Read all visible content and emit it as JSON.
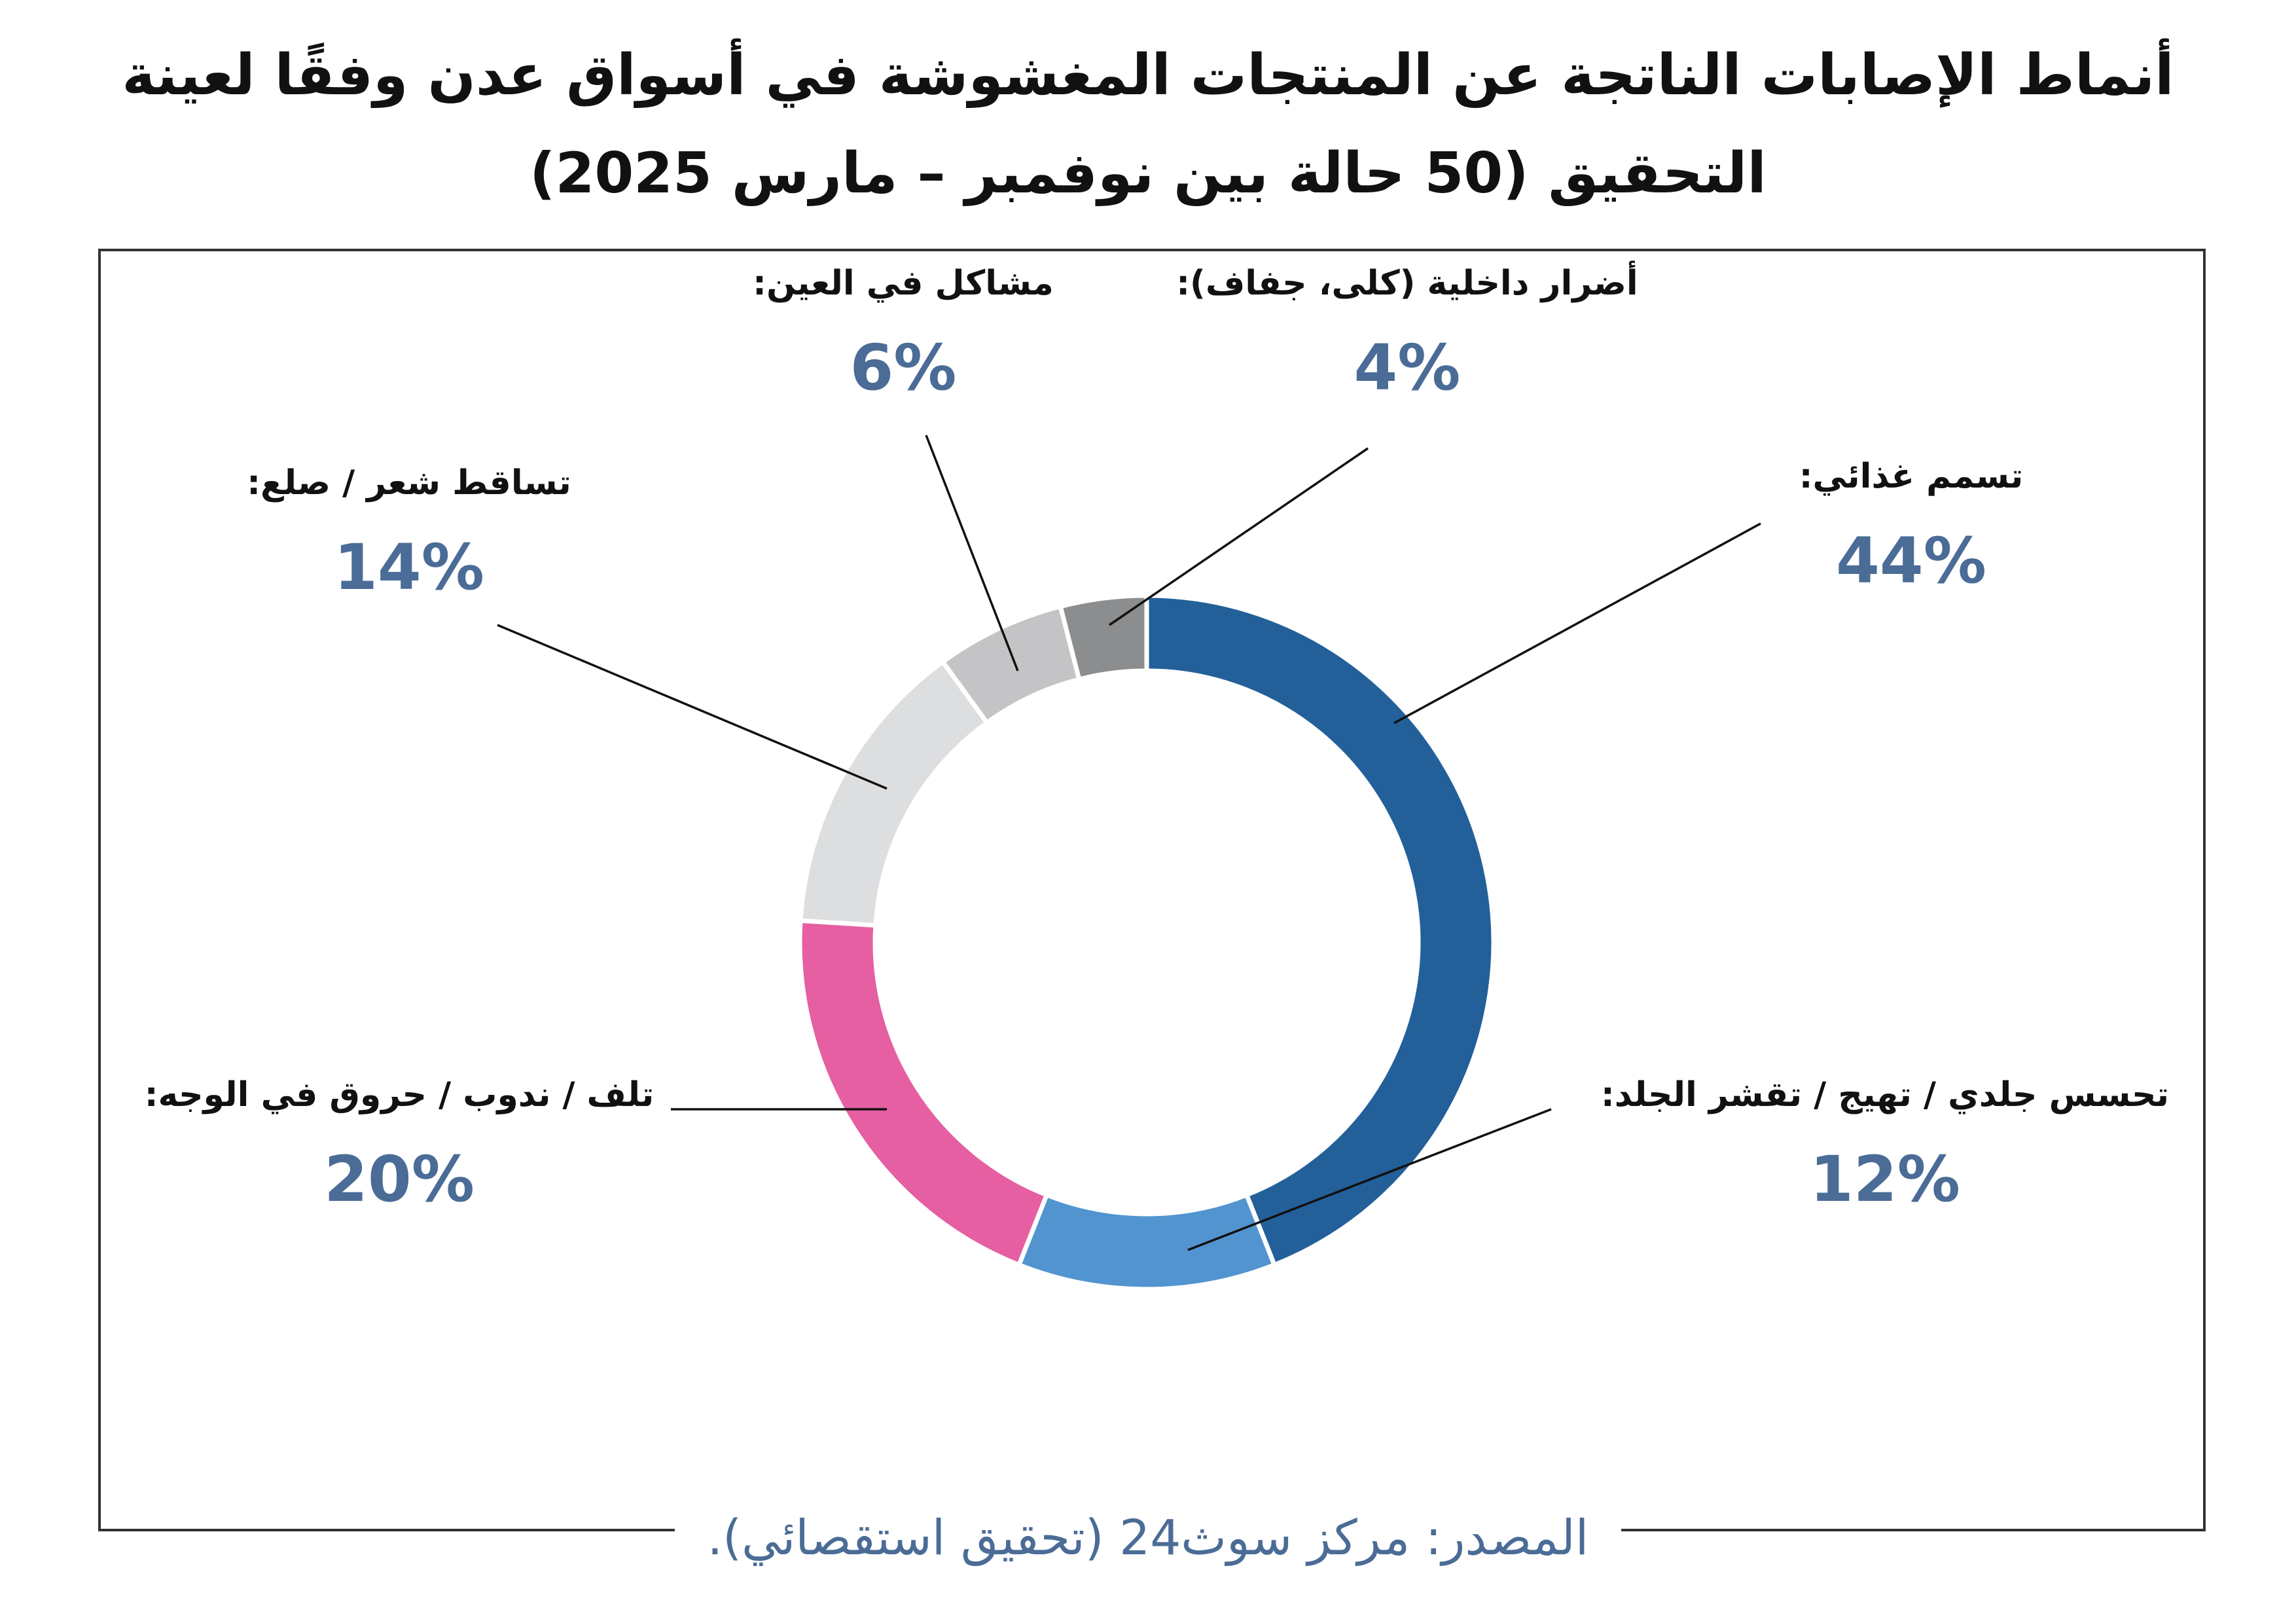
{
  "title_lines": [
    "أنماط الإصابات الناتجة عن المنتجات المغشوشة في أسواق عدن وفقًا لعينة",
    "التحقيق (50 حالة بين نوفمبر – مارس 2025)"
  ],
  "source": "المصدر: مركز سوث24 (تحقيق استقصائي).",
  "colors": {
    "slice_outline": "#ffffff",
    "value_text": "#4a6c96",
    "leader": "#111111"
  },
  "chart_data": {
    "type": "pie",
    "variant": "donut",
    "title": "أنماط الإصابات الناتجة عن المنتجات المغشوشة في أسواق عدن وفقًا لعينة التحقيق (50 حالة بين نوفمبر – مارس 2025)",
    "start_angle": "12 o'clock",
    "direction": "clockwise",
    "legend": "none",
    "slices": [
      {
        "label": "تسمم غذائي:",
        "value": 44,
        "display": "44%",
        "color": "#23609a"
      },
      {
        "label": "تحسس جلدي / تهيج / تقشر الجلد:",
        "value": 12,
        "display": "12%",
        "color": "#5194d0"
      },
      {
        "label": "تلف / ندوب / حروق في الوجه:",
        "value": 20,
        "display": "20%",
        "color": "#e55fa2"
      },
      {
        "label": "تساقط شعر / صلع:",
        "value": 14,
        "display": "14%",
        "color": "#dddee0"
      },
      {
        "label": "مشاكل في العين:",
        "value": 6,
        "display": "6%",
        "color": "#c4c4c6"
      },
      {
        "label": "أضرار داخلية (كلى، جفاف):",
        "value": 4,
        "display": "4%",
        "color": "#8c8d8f"
      }
    ]
  }
}
